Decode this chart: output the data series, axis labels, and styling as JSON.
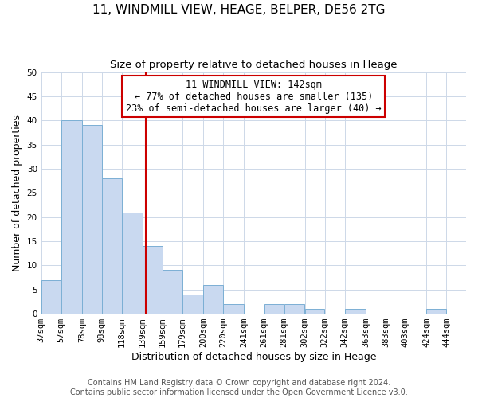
{
  "title": "11, WINDMILL VIEW, HEAGE, BELPER, DE56 2TG",
  "subtitle": "Size of property relative to detached houses in Heage",
  "xlabel": "Distribution of detached houses by size in Heage",
  "ylabel": "Number of detached properties",
  "bar_left_edges": [
    37,
    57,
    78,
    98,
    118,
    139,
    159,
    179,
    200,
    220,
    241,
    261,
    281,
    302,
    322,
    342,
    363,
    383,
    403,
    424
  ],
  "bar_heights": [
    7,
    40,
    39,
    28,
    21,
    14,
    9,
    4,
    6,
    2,
    0,
    2,
    2,
    1,
    0,
    1,
    0,
    0,
    0,
    1
  ],
  "bar_widths": [
    20,
    21,
    20,
    20,
    21,
    20,
    20,
    21,
    20,
    21,
    20,
    20,
    21,
    20,
    20,
    21,
    20,
    20,
    21,
    20
  ],
  "tick_labels": [
    "37sqm",
    "57sqm",
    "78sqm",
    "98sqm",
    "118sqm",
    "139sqm",
    "159sqm",
    "179sqm",
    "200sqm",
    "220sqm",
    "241sqm",
    "261sqm",
    "281sqm",
    "302sqm",
    "322sqm",
    "342sqm",
    "363sqm",
    "383sqm",
    "403sqm",
    "424sqm",
    "444sqm"
  ],
  "tick_positions": [
    37,
    57,
    78,
    98,
    118,
    139,
    159,
    179,
    200,
    220,
    241,
    261,
    281,
    302,
    322,
    342,
    363,
    383,
    403,
    424,
    444
  ],
  "bar_color": "#c9d9f0",
  "bar_edge_color": "#7bafd4",
  "vline_x": 142,
  "vline_color": "#cc0000",
  "ylim": [
    0,
    50
  ],
  "xlim": [
    37,
    464
  ],
  "annotation_box_text": "11 WINDMILL VIEW: 142sqm\n← 77% of detached houses are smaller (135)\n23% of semi-detached houses are larger (40) →",
  "footer_line1": "Contains HM Land Registry data © Crown copyright and database right 2024.",
  "footer_line2": "Contains public sector information licensed under the Open Government Licence v3.0.",
  "title_fontsize": 11,
  "subtitle_fontsize": 9.5,
  "axis_label_fontsize": 9,
  "tick_fontsize": 7.5,
  "annotation_fontsize": 8.5,
  "footer_fontsize": 7
}
